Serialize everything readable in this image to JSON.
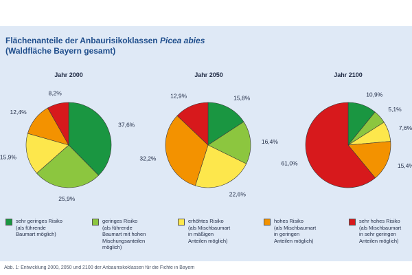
{
  "title": {
    "prefix": "Flächenanteile der Anbaurisikoklassen ",
    "species": "Picea abies",
    "line2": "(Waldfläche Bayern gesamt)"
  },
  "caption": "Abb. 1: Entwicklung 2000, 2050 und 2100 der Anbaurisikoklassen für die Fichte in Bayern",
  "legend": [
    {
      "label": "sehr geringes Risiko\n(als führende\nBaumart möglich)",
      "color": "#1a9641"
    },
    {
      "label": "geringes Risiko\n(als führende\nBaumart mit hohen\nMischungsanteilen\nmöglich)",
      "color": "#8cc63f"
    },
    {
      "label": "erhöhtes Risiko\n(als Mischbaumart\nin mäßigen\nAnteilen möglich)",
      "color": "#fde74c"
    },
    {
      "label": "hohes Risiko\n(als Mischbaumart\nin geringen\nAnteilen möglich)",
      "color": "#f39200"
    },
    {
      "label": "sehr hohes Risiko\n(als Mischbaumart\nin sehr geringen\nAnteilen möglich)",
      "color": "#d7191c"
    }
  ],
  "chart_data": [
    {
      "type": "pie",
      "title": "Jahr 2000",
      "categories": [
        "sehr geringes Risiko",
        "geringes Risiko",
        "erhöhtes Risiko",
        "hohes Risiko",
        "sehr hohes Risiko"
      ],
      "values": [
        37.6,
        25.9,
        15.9,
        12.4,
        8.2
      ],
      "labels": [
        "37,6%",
        "25,9%",
        "15,9%",
        "12,4%",
        "8,2%"
      ]
    },
    {
      "type": "pie",
      "title": "Jahr 2050",
      "categories": [
        "sehr geringes Risiko",
        "geringes Risiko",
        "erhöhtes Risiko",
        "hohes Risiko",
        "sehr hohes Risiko"
      ],
      "values": [
        15.8,
        16.4,
        22.6,
        32.2,
        12.9
      ],
      "labels": [
        "15,8%",
        "16,4%",
        "22,6%",
        "32,2%",
        "12,9%"
      ]
    },
    {
      "type": "pie",
      "title": "Jahr 2100",
      "categories": [
        "sehr geringes Risiko",
        "geringes Risiko",
        "erhöhtes Risiko",
        "hohes Risiko",
        "sehr hohes Risiko"
      ],
      "values": [
        10.9,
        5.1,
        7.6,
        15.4,
        61.0
      ],
      "labels": [
        "10,9%",
        "5,1%",
        "7,6%",
        "15,4%",
        "61,0%"
      ]
    }
  ]
}
